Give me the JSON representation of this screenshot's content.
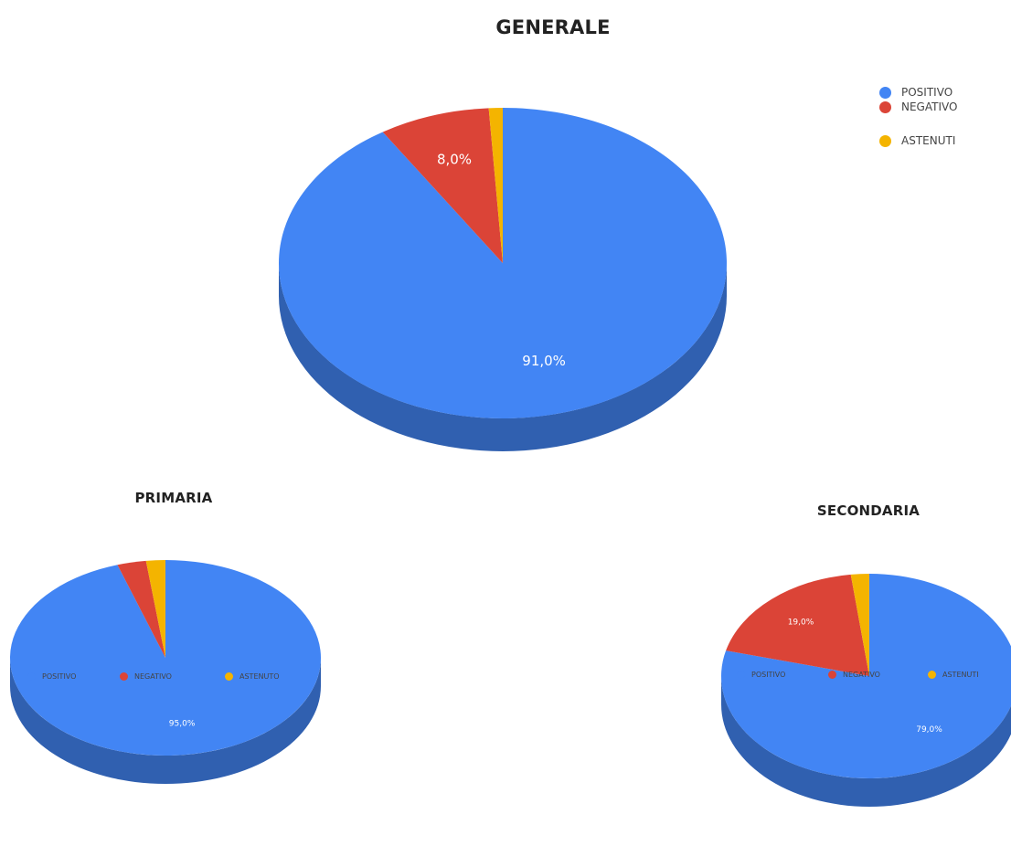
{
  "chart_data": [
    {
      "type": "pie",
      "title": "GENERALE",
      "categories": [
        "POSITIVO",
        "NEGATIVO",
        "ASTENUTI"
      ],
      "values": [
        91.0,
        8.0,
        1.0
      ],
      "data_labels": [
        "91,0%",
        "8,0%",
        ""
      ],
      "colors": [
        "#4285F4",
        "#DB4437",
        "#F4B400"
      ],
      "legend": [
        "POSITIVO",
        "NEGATIVO",
        "ASTENUTI"
      ],
      "legend_position": "right"
    },
    {
      "type": "pie",
      "title": "PRIMARIA",
      "categories": [
        "POSITIVO",
        "NEGATIVO",
        "ASTENUTO"
      ],
      "values": [
        95.0,
        3.0,
        2.0
      ],
      "data_labels": [
        "95,0%",
        "",
        ""
      ],
      "colors": [
        "#4285F4",
        "#DB4437",
        "#F4B400"
      ],
      "legend": [
        "POSITIVO",
        "NEGATIVO",
        "ASTENUTO"
      ],
      "legend_position": "bottom"
    },
    {
      "type": "pie",
      "title": "SECONDARIA",
      "categories": [
        "POSITIVO",
        "NEGATIVO",
        "ASTENUTI"
      ],
      "values": [
        79.0,
        19.0,
        2.0
      ],
      "data_labels": [
        "79,0%",
        "19,0%",
        ""
      ],
      "colors": [
        "#4285F4",
        "#DB4437",
        "#F4B400"
      ],
      "legend": [
        "POSITIVO",
        "NEGATIVO",
        "ASTENUTI"
      ],
      "legend_position": "bottom"
    }
  ]
}
